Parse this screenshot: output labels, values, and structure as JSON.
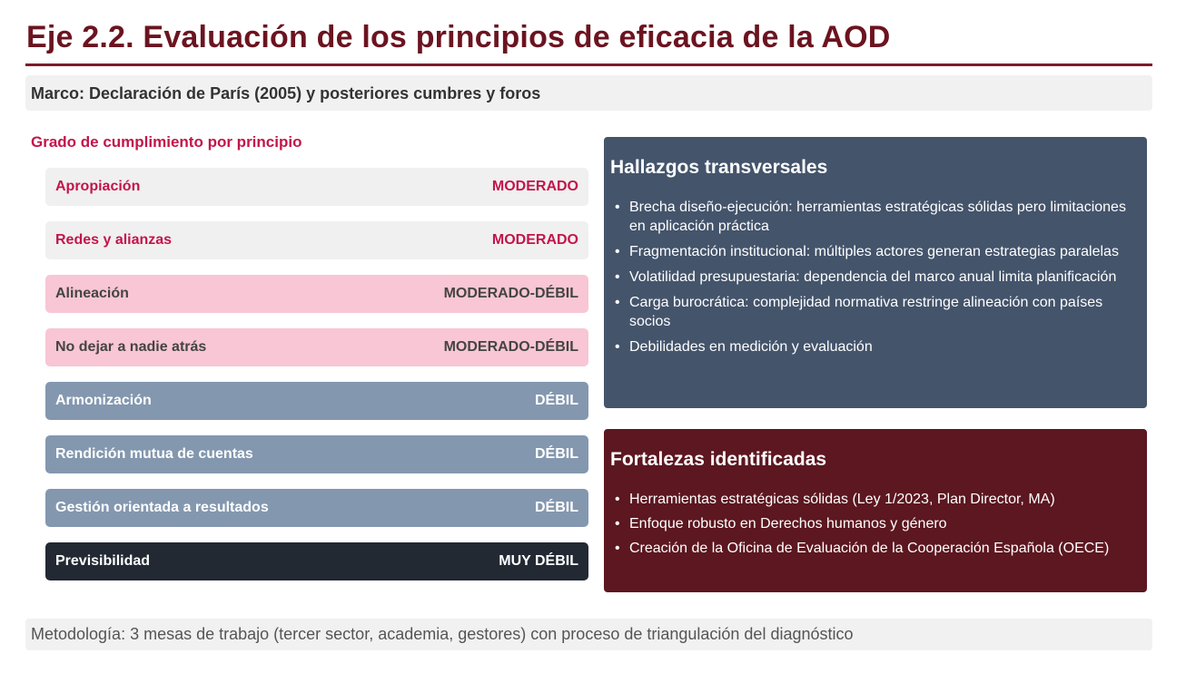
{
  "slide": {
    "title": "Eje 2.2. Evaluación de los principios de eficacia de la AOD",
    "frame": "Marco: Declaración de París (2005) y posteriores cumbres y foros",
    "section_label": "Grado de cumplimiento por principio",
    "footer": "Metodología: 3 mesas de trabajo (tercer sector, academia, gestores) con proceso de triangulación del diagnóstico"
  },
  "principles": [
    {
      "name": "Apropiación",
      "level": "MODERADO"
    },
    {
      "name": "Redes y alianzas",
      "level": "MODERADO"
    },
    {
      "name": "Alineación",
      "level": "MODERADO-DÉBIL"
    },
    {
      "name": "No dejar a nadie atrás",
      "level": "MODERADO-DÉBIL"
    },
    {
      "name": "Armonización",
      "level": "DÉBIL"
    },
    {
      "name": "Rendición mutua de cuentas",
      "level": "DÉBIL"
    },
    {
      "name": "Gestión orientada a resultados",
      "level": "DÉBIL"
    },
    {
      "name": "Previsibilidad",
      "level": "MUY DÉBIL"
    }
  ],
  "findings": {
    "title": "Hallazgos transversales",
    "items": [
      "Brecha diseño-ejecución: herramientas estratégicas sólidas pero limitaciones en aplicación práctica",
      "Fragmentación institucional: múltiples actores generan estrategias paralelas",
      "Volatilidad presupuestaria: dependencia del marco anual limita planificación",
      "Carga burocrática: complejidad normativa restringe alineación con países socios",
      "Debilidades en medición y evaluación"
    ]
  },
  "strengths": {
    "title": "Fortalezas identificadas",
    "items": [
      "Herramientas estratégicas sólidas (Ley 1/2023, Plan Director, MA)",
      "Enfoque robusto en Derechos humanos y género",
      "Creación de la Oficina de Evaluación de la Cooperación Española (OECE)"
    ]
  },
  "colors": {
    "title": "#6b1420",
    "accent_pink": "#c3154a",
    "moderado_bg": "#f0f0f0",
    "moderado_debil_bg": "#f8c6d4",
    "debil_bg": "#8397af",
    "muy_debil_bg": "#222933",
    "findings_bg": "#44546b",
    "strengths_bg": "#5c1720"
  }
}
